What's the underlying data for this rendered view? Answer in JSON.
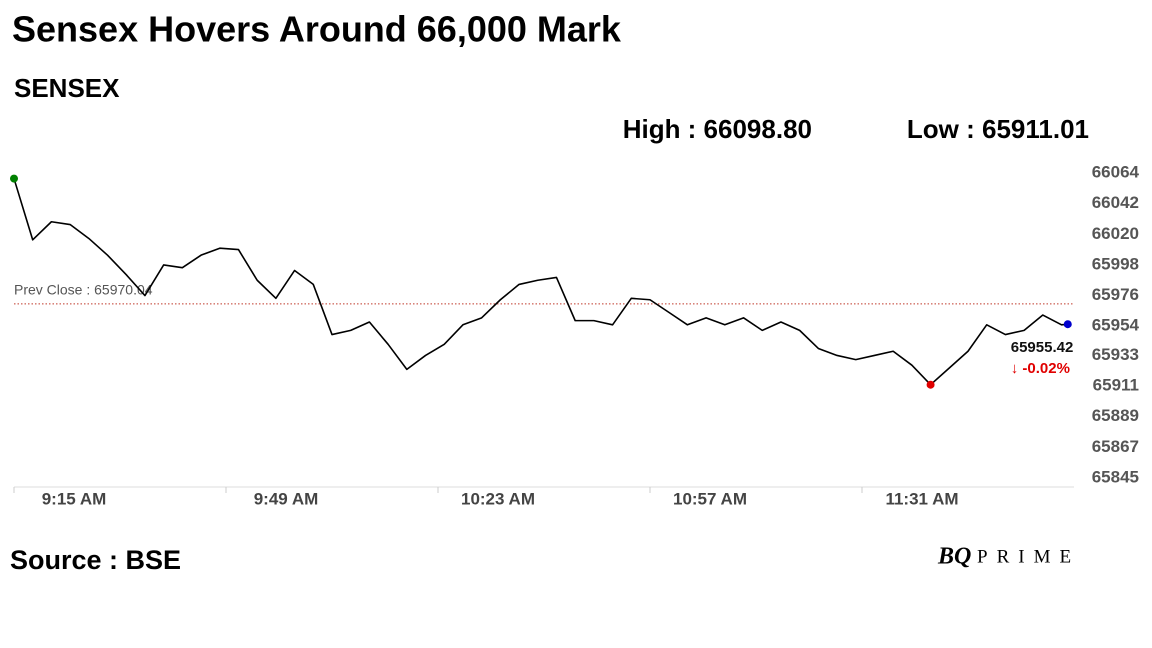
{
  "chart_data": {
    "type": "line",
    "title": "Sensex Hovers Around 66,000 Mark",
    "subtitle": "SENSEX",
    "high_label": "High : 66098.80",
    "low_label": "Low : 65911.01",
    "source": "Source : BSE",
    "brand": [
      "BQ",
      "PRIME"
    ],
    "x": [
      "9:15 AM",
      "9:18 AM",
      "9:21 AM",
      "9:24 AM",
      "9:27 AM",
      "9:30 AM",
      "9:33 AM",
      "9:36 AM",
      "9:39 AM",
      "9:42 AM",
      "9:45 AM",
      "9:48 AM",
      "9:51 AM",
      "9:54 AM",
      "9:57 AM",
      "10:00 AM",
      "10:03 AM",
      "10:06 AM",
      "10:09 AM",
      "10:12 AM",
      "10:15 AM",
      "10:18 AM",
      "10:21 AM",
      "10:24 AM",
      "10:27 AM",
      "10:30 AM",
      "10:33 AM",
      "10:36 AM",
      "10:39 AM",
      "10:42 AM",
      "10:45 AM",
      "10:48 AM",
      "10:51 AM",
      "10:54 AM",
      "10:57 AM",
      "11:00 AM",
      "11:03 AM",
      "11:06 AM",
      "11:09 AM",
      "11:12 AM",
      "11:15 AM",
      "11:18 AM",
      "11:21 AM",
      "11:24 AM",
      "11:27 AM",
      "11:30 AM",
      "11:33 AM",
      "11:36 AM",
      "11:39 AM",
      "11:42 AM",
      "11:45 AM",
      "11:48 AM",
      "11:51 AM",
      "11:54 AM",
      "11:57 AM",
      "12:00 PM",
      "12:03 PM",
      "12:04 PM"
    ],
    "series": [
      {
        "name": "SENSEX",
        "color": "#000000",
        "values": [
          66060,
          66016,
          66029,
          66027,
          66017,
          66005,
          65991,
          65976,
          65998,
          65996,
          66005,
          66010,
          66009,
          65987,
          65974,
          65994,
          65984,
          65948,
          65951,
          65957,
          65941,
          65923,
          65933,
          65941,
          65955,
          65960,
          65973,
          65984,
          65987,
          65989,
          65958,
          65958,
          65955,
          65974,
          65973,
          65964,
          65955,
          65960,
          65955,
          65960,
          65951,
          65957,
          65951,
          65938,
          65933,
          65930,
          65933,
          65936,
          65926,
          65912,
          65924,
          65936,
          65955,
          65948,
          65951,
          65962,
          65955,
          65955.42
        ]
      }
    ],
    "xlim": [
      "9:15 AM",
      "12:05 PM"
    ],
    "xticks": [
      "9:15 AM",
      "9:49 AM",
      "10:23 AM",
      "10:57 AM",
      "11:31 AM"
    ],
    "ylim": [
      65845,
      66064
    ],
    "yticks": [
      66064,
      66042,
      66020,
      65998,
      65976,
      65954,
      65933,
      65911,
      65889,
      65867,
      65845
    ],
    "reference_line": {
      "value": 65970.04,
      "label": "Prev Close : 65970.04",
      "color": "#c0392b"
    },
    "marker_colors": {
      "first": "#008000",
      "min": "#e00000",
      "last": "#0000cc"
    },
    "annotations": [
      "65955.42",
      "↓ -0.02%"
    ]
  }
}
